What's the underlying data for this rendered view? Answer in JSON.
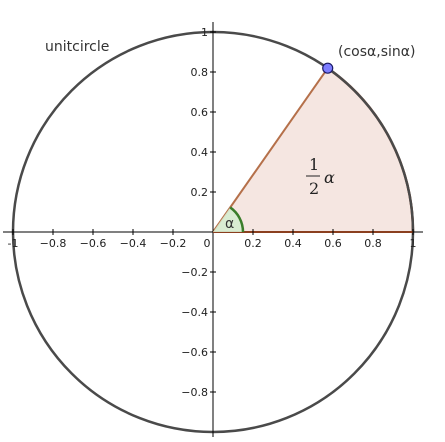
{
  "diagram": {
    "circle_label": "unitcircle",
    "point_label": "(cosα,sinα)",
    "angle_symbol": "α",
    "sector_label": {
      "numerator": "1",
      "denominator": "2",
      "symbol": "α"
    },
    "angle_alpha_degrees": 55,
    "x_axis": {
      "min": -1.05,
      "max": 1.05,
      "ticks": [
        {
          "value": -1,
          "label": "-1"
        },
        {
          "value": -0.8,
          "label": "−0.8"
        },
        {
          "value": -0.6,
          "label": "−0.6"
        },
        {
          "value": -0.4,
          "label": "−0.4"
        },
        {
          "value": -0.2,
          "label": "−0.2"
        },
        {
          "value": 0,
          "label": "0"
        },
        {
          "value": 0.2,
          "label": "0.2"
        },
        {
          "value": 0.4,
          "label": "0.4"
        },
        {
          "value": 0.6,
          "label": "0.6"
        },
        {
          "value": 0.8,
          "label": "0.8"
        },
        {
          "value": 1,
          "label": "1"
        }
      ]
    },
    "y_axis": {
      "min": -1.05,
      "max": 1.05,
      "ticks": [
        {
          "value": 1,
          "label": "1"
        },
        {
          "value": 0.8,
          "label": "0.8"
        },
        {
          "value": 0.6,
          "label": "0.6"
        },
        {
          "value": 0.4,
          "label": "0.4"
        },
        {
          "value": 0.2,
          "label": "0.2"
        },
        {
          "value": -0.2,
          "label": "−0.2"
        },
        {
          "value": -0.4,
          "label": "−0.4"
        },
        {
          "value": -0.6,
          "label": "−0.6"
        },
        {
          "value": -0.8,
          "label": "−0.8"
        }
      ]
    },
    "colors": {
      "circle": "#4a4a4a",
      "sector_fill": "#f5e6e1",
      "sector_edge": "#b5704a",
      "arc_highlight": "#8b3f1f",
      "angle_arc": "#3a7d2a",
      "angle_fill": "#d6ecd0",
      "point_fill": "#7d7dff",
      "point_stroke": "#1a1a66",
      "axis": "#000000"
    }
  }
}
